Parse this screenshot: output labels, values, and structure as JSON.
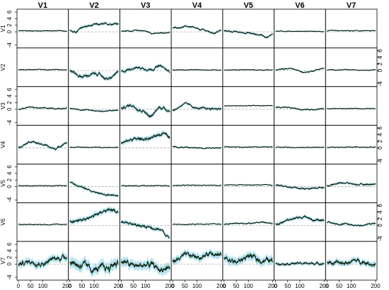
{
  "chart_data": {
    "type": "line",
    "title": "",
    "description_of_grid": "7x7 matrix of panels",
    "col_titles": [
      "V1",
      "V2",
      "V3",
      "V4",
      "V5",
      "V6",
      "V7"
    ],
    "row_titles": [
      "V1",
      "V2",
      "V3",
      "V4",
      "V5",
      "V6",
      "V7"
    ],
    "x_ticks": [
      "0",
      "50",
      "100",
      "200"
    ],
    "x_tick_values": [
      0,
      50,
      100,
      200
    ],
    "xlim": [
      0,
      200
    ],
    "y_ticks": [
      "-4",
      "0",
      "2",
      "4",
      "6"
    ],
    "y_tick_values": [
      -4,
      0,
      2,
      4,
      6
    ],
    "ylim": [
      -4,
      6
    ],
    "colors": {
      "line_dark": "#111111",
      "line_green": "#2e9e56",
      "band": "#a7dcf0",
      "zero_line": "#aaaaaa",
      "frame": "#000000"
    },
    "panels": [
      [
        {
          "keys": [
            [
              0,
              0.3
            ],
            [
              200,
              0.3
            ]
          ],
          "band": 0.1
        },
        {
          "keys": [
            [
              0,
              0.5
            ],
            [
              20,
              -0.2
            ],
            [
              60,
              1.6
            ],
            [
              120,
              2.2
            ],
            [
              200,
              2.6
            ]
          ],
          "band": 0.25
        },
        {
          "keys": [
            [
              0,
              0.2
            ],
            [
              80,
              0.4
            ],
            [
              140,
              -0.5
            ],
            [
              200,
              -0.2
            ]
          ],
          "band": 0.15
        },
        {
          "keys": [
            [
              0,
              1.2
            ],
            [
              60,
              1.6
            ],
            [
              120,
              0.6
            ],
            [
              170,
              -0.3
            ],
            [
              200,
              0.4
            ]
          ],
          "band": 0.2
        },
        {
          "keys": [
            [
              0,
              0.3
            ],
            [
              80,
              -0.2
            ],
            [
              150,
              -0.9
            ],
            [
              180,
              -1.6
            ],
            [
              200,
              -0.6
            ]
          ],
          "band": 0.2
        },
        {
          "keys": [
            [
              0,
              0.2
            ],
            [
              200,
              0.1
            ]
          ],
          "band": 0.1
        },
        {
          "keys": [
            [
              0,
              0.3
            ],
            [
              200,
              0.3
            ]
          ],
          "band": 0.1
        }
      ],
      [
        {
          "keys": [
            [
              0,
              0.3
            ],
            [
              200,
              0.3
            ]
          ],
          "band": 0.1
        },
        {
          "keys": [
            [
              0,
              -0.2
            ],
            [
              50,
              -1.8
            ],
            [
              110,
              -1.0
            ],
            [
              160,
              -2.6
            ],
            [
              200,
              -0.6
            ]
          ],
          "band": 0.35
        },
        {
          "keys": [
            [
              0,
              -0.3
            ],
            [
              60,
              0.9
            ],
            [
              120,
              0.4
            ],
            [
              160,
              1.3
            ],
            [
              200,
              -0.3
            ]
          ],
          "band": 0.3
        },
        {
          "keys": [
            [
              0,
              0.2
            ],
            [
              200,
              0.2
            ]
          ],
          "band": 0.1
        },
        {
          "keys": [
            [
              0,
              0.2
            ],
            [
              200,
              0.2
            ]
          ],
          "band": 0.1
        },
        {
          "keys": [
            [
              0,
              0.2
            ],
            [
              60,
              0.6
            ],
            [
              120,
              -0.5
            ],
            [
              200,
              0.6
            ]
          ],
          "band": 0.15
        },
        {
          "keys": [
            [
              0,
              0.2
            ],
            [
              200,
              0.2
            ]
          ],
          "band": 0.1
        }
      ],
      [
        {
          "keys": [
            [
              0,
              0.0
            ],
            [
              40,
              0.6
            ],
            [
              100,
              0.3
            ],
            [
              160,
              0.2
            ],
            [
              200,
              0.4
            ]
          ],
          "band": 0.15
        },
        {
          "keys": [
            [
              0,
              0.2
            ],
            [
              80,
              -0.3
            ],
            [
              140,
              -0.6
            ],
            [
              200,
              -0.3
            ]
          ],
          "band": 0.15
        },
        {
          "keys": [
            [
              0,
              0.3
            ],
            [
              40,
              1.2
            ],
            [
              90,
              -0.4
            ],
            [
              120,
              -2.2
            ],
            [
              160,
              0.6
            ],
            [
              200,
              -0.3
            ]
          ],
          "band": 0.35
        },
        {
          "keys": [
            [
              0,
              -0.3
            ],
            [
              50,
              1.6
            ],
            [
              110,
              0.2
            ],
            [
              160,
              0.2
            ],
            [
              200,
              0.2
            ]
          ],
          "band": 0.25
        },
        {
          "keys": [
            [
              0,
              1.0
            ],
            [
              200,
              1.1
            ]
          ],
          "band": 0.1
        },
        {
          "keys": [
            [
              0,
              0.6
            ],
            [
              60,
              0.4
            ],
            [
              120,
              -0.1
            ],
            [
              200,
              0.1
            ]
          ],
          "band": 0.15
        },
        {
          "keys": [
            [
              0,
              0.2
            ],
            [
              200,
              0.2
            ]
          ],
          "band": 0.1
        }
      ],
      [
        {
          "keys": [
            [
              0,
              0.4
            ],
            [
              50,
              2.0
            ],
            [
              100,
              1.0
            ],
            [
              150,
              -0.2
            ],
            [
              200,
              1.6
            ]
          ],
          "band": 0.25
        },
        {
          "keys": [
            [
              0,
              0.2
            ],
            [
              200,
              0.2
            ]
          ],
          "band": 0.1
        },
        {
          "keys": [
            [
              0,
              1.4
            ],
            [
              50,
              2.6
            ],
            [
              100,
              2.8
            ],
            [
              150,
              3.4
            ],
            [
              180,
              4.8
            ],
            [
              200,
              3.4
            ]
          ],
          "band": 0.4
        },
        {
          "keys": [
            [
              0,
              0.4
            ],
            [
              40,
              0.2
            ],
            [
              100,
              0.0
            ],
            [
              200,
              0.1
            ]
          ],
          "band": 0.15
        },
        {
          "keys": [
            [
              0,
              0.3
            ],
            [
              200,
              0.3
            ]
          ],
          "band": 0.1
        },
        {
          "keys": [
            [
              0,
              0.2
            ],
            [
              200,
              0.2
            ]
          ],
          "band": 0.1
        },
        {
          "keys": [
            [
              0,
              0.2
            ],
            [
              200,
              0.3
            ]
          ],
          "band": 0.1
        }
      ],
      [
        {
          "keys": [
            [
              0,
              0.3
            ],
            [
              200,
              0.3
            ]
          ],
          "band": 0.1
        },
        {
          "keys": [
            [
              0,
              1.4
            ],
            [
              40,
              0.0
            ],
            [
              100,
              -1.6
            ],
            [
              160,
              -2.6
            ],
            [
              200,
              -2.8
            ]
          ],
          "band": 0.25
        },
        {
          "keys": [
            [
              0,
              0.3
            ],
            [
              200,
              0.3
            ]
          ],
          "band": 0.1
        },
        {
          "keys": [
            [
              0,
              0.4
            ],
            [
              200,
              0.4
            ]
          ],
          "band": 0.1
        },
        {
          "keys": [
            [
              0,
              0.5
            ],
            [
              200,
              0.5
            ]
          ],
          "band": 0.1
        },
        {
          "keys": [
            [
              0,
              0.5
            ],
            [
              60,
              -0.2
            ],
            [
              130,
              -0.6
            ],
            [
              200,
              -0.2
            ]
          ],
          "band": 0.2
        },
        {
          "keys": [
            [
              0,
              0.3
            ],
            [
              60,
              1.2
            ],
            [
              140,
              0.6
            ],
            [
              200,
              0.8
            ]
          ],
          "band": 0.2
        }
      ],
      [
        {
          "keys": [
            [
              0,
              0.3
            ],
            [
              200,
              0.3
            ]
          ],
          "band": 0.1
        },
        {
          "keys": [
            [
              0,
              1.2
            ],
            [
              60,
              1.8
            ],
            [
              120,
              3.6
            ],
            [
              170,
              4.8
            ],
            [
              200,
              4.2
            ]
          ],
          "band": 0.4
        },
        {
          "keys": [
            [
              0,
              1.2
            ],
            [
              50,
              0.2
            ],
            [
              100,
              -0.4
            ],
            [
              150,
              -1.0
            ],
            [
              200,
              -3.6
            ]
          ],
          "band": 0.35
        },
        {
          "keys": [
            [
              0,
              0.3
            ],
            [
              200,
              0.4
            ]
          ],
          "band": 0.1
        },
        {
          "keys": [
            [
              0,
              0.4
            ],
            [
              80,
              0.6
            ],
            [
              150,
              0.9
            ],
            [
              200,
              0.6
            ]
          ],
          "band": 0.15
        },
        {
          "keys": [
            [
              0,
              0.4
            ],
            [
              60,
              1.8
            ],
            [
              120,
              2.6
            ],
            [
              160,
              1.6
            ],
            [
              200,
              1.8
            ]
          ],
          "band": 0.3
        },
        {
          "keys": [
            [
              0,
              0.8
            ],
            [
              60,
              0.4
            ],
            [
              140,
              0.0
            ],
            [
              200,
              0.6
            ]
          ],
          "band": 0.2
        }
      ],
      [
        {
          "keys": [
            [
              0,
              0.0
            ],
            [
              50,
              0.8
            ],
            [
              100,
              0.2
            ],
            [
              150,
              1.6
            ],
            [
              200,
              2.4
            ]
          ],
          "band": 0.6
        },
        {
          "keys": [
            [
              0,
              0.8
            ],
            [
              40,
              -0.2
            ],
            [
              100,
              -1.6
            ],
            [
              150,
              -1.2
            ],
            [
              200,
              0.6
            ]
          ],
          "band": 0.9
        },
        {
          "keys": [
            [
              0,
              0.6
            ],
            [
              60,
              -0.6
            ],
            [
              120,
              -0.3
            ],
            [
              160,
              -1.6
            ],
            [
              200,
              -1.2
            ]
          ],
          "band": 0.8
        },
        {
          "keys": [
            [
              0,
              1.0
            ],
            [
              60,
              2.6
            ],
            [
              120,
              2.2
            ],
            [
              160,
              3.6
            ],
            [
              200,
              2.6
            ]
          ],
          "band": 0.6
        },
        {
          "keys": [
            [
              0,
              1.8
            ],
            [
              50,
              0.6
            ],
            [
              100,
              2.4
            ],
            [
              150,
              1.2
            ],
            [
              200,
              1.0
            ]
          ],
          "band": 0.7
        },
        {
          "keys": [
            [
              0,
              0.2
            ],
            [
              200,
              0.2
            ]
          ],
          "band": 0.3
        },
        {
          "keys": [
            [
              0,
              0.4
            ],
            [
              60,
              0.2
            ],
            [
              120,
              1.0
            ],
            [
              200,
              0.0
            ]
          ],
          "band": 0.5
        }
      ]
    ]
  }
}
